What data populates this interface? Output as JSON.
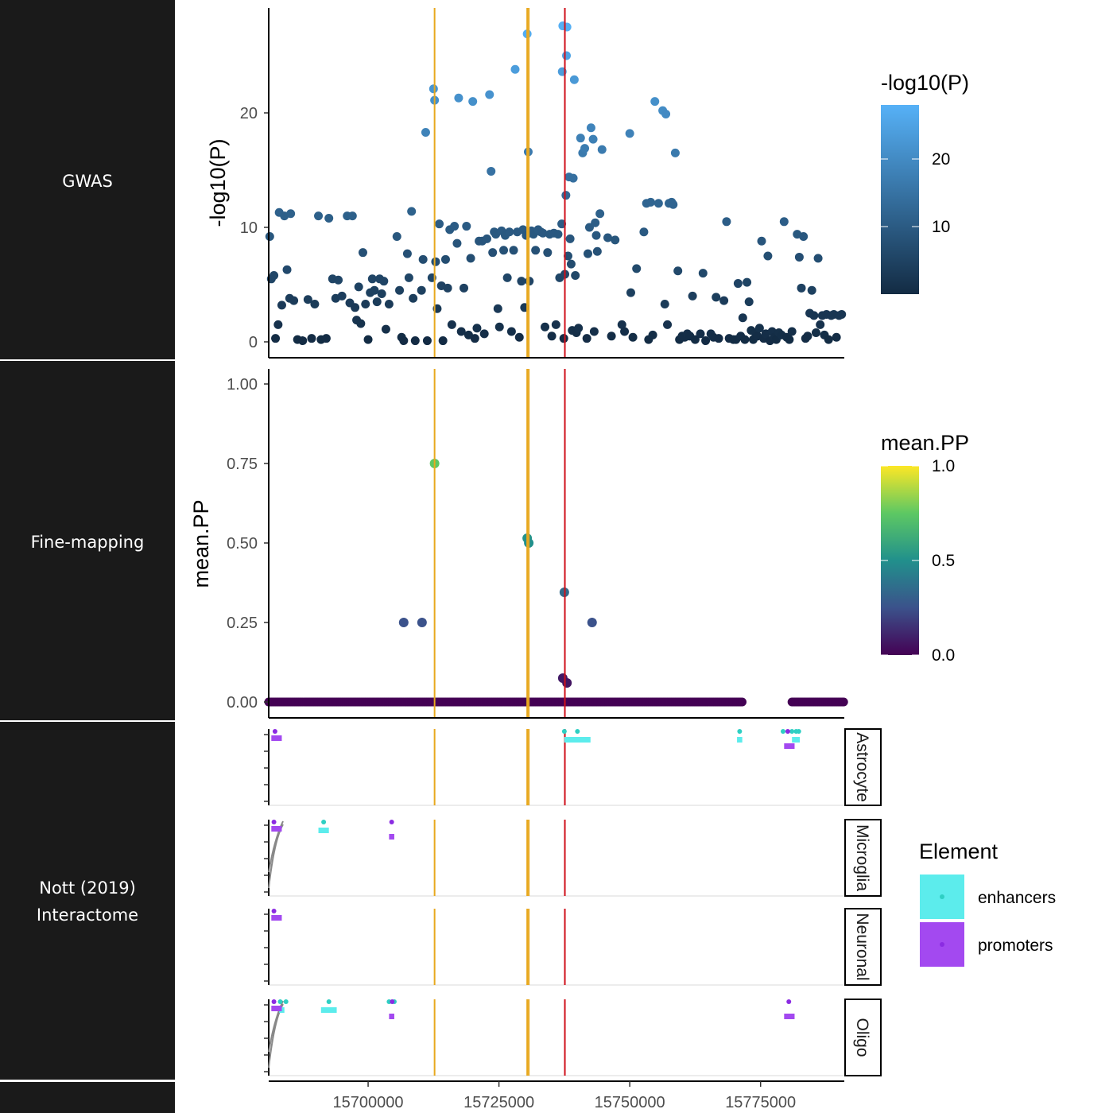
{
  "row_labels": {
    "gwas": "GWAS",
    "finemap": "Fine-mapping",
    "nott_line1": "Nott (2019)",
    "nott_line2": "Interactome"
  },
  "chart_data": [
    {
      "type": "scatter",
      "panel": "GWAS",
      "ylabel": "-log10(P)",
      "ylim": [
        0,
        29
      ],
      "yticks": [
        0,
        10,
        20
      ],
      "xlim": [
        15681000,
        15791000
      ],
      "color_scale": {
        "title": "-log10(P)",
        "low": "#132B43",
        "high": "#56B1F7",
        "ticks": [
          10,
          20
        ]
      },
      "highlight_lines": [
        {
          "x": 15712700,
          "color": "#E8A81E"
        },
        {
          "x": 15730400,
          "color": "#E8A81E"
        },
        {
          "x": 15730700,
          "color": "#E8A81E"
        },
        {
          "x": 15737600,
          "color": "#D0101A"
        }
      ],
      "points": [
        [
          15681200,
          9.2
        ],
        [
          15681500,
          5.5
        ],
        [
          15682000,
          5.8
        ],
        [
          15682300,
          0.3
        ],
        [
          15682800,
          1.5
        ],
        [
          15683000,
          11.3
        ],
        [
          15683500,
          3.2
        ],
        [
          15684000,
          11.0
        ],
        [
          15684500,
          6.3
        ],
        [
          15685000,
          3.8
        ],
        [
          15685200,
          11.2
        ],
        [
          15685800,
          3.6
        ],
        [
          15686500,
          0.2
        ],
        [
          15687500,
          0.1
        ],
        [
          15688500,
          3.7
        ],
        [
          15689200,
          0.3
        ],
        [
          15689800,
          3.3
        ],
        [
          15690500,
          11.0
        ],
        [
          15691000,
          0.2
        ],
        [
          15692000,
          0.3
        ],
        [
          15692500,
          10.8
        ],
        [
          15693200,
          5.5
        ],
        [
          15693800,
          3.8
        ],
        [
          15694300,
          5.4
        ],
        [
          15695000,
          4.0
        ],
        [
          15696000,
          11.0
        ],
        [
          15696500,
          3.4
        ],
        [
          15697000,
          11.0
        ],
        [
          15697500,
          3.0
        ],
        [
          15697800,
          1.9
        ],
        [
          15698200,
          4.8
        ],
        [
          15698600,
          1.6
        ],
        [
          15699000,
          7.8
        ],
        [
          15699500,
          3.3
        ],
        [
          15700000,
          0.2
        ],
        [
          15700400,
          4.3
        ],
        [
          15700800,
          5.5
        ],
        [
          15701200,
          4.5
        ],
        [
          15701700,
          3.5
        ],
        [
          15702200,
          5.5
        ],
        [
          15702600,
          4.2
        ],
        [
          15703000,
          5.3
        ],
        [
          15703400,
          1.1
        ],
        [
          15704000,
          3.3
        ],
        [
          15705500,
          9.2
        ],
        [
          15706000,
          4.5
        ],
        [
          15706400,
          0.4
        ],
        [
          15706800,
          0.1
        ],
        [
          15707500,
          7.7
        ],
        [
          15707800,
          5.6
        ],
        [
          15708300,
          11.4
        ],
        [
          15708600,
          3.8
        ],
        [
          15709000,
          0.1
        ],
        [
          15710200,
          4.5
        ],
        [
          15710500,
          7.2
        ],
        [
          15711000,
          18.3
        ],
        [
          15711300,
          0.1
        ],
        [
          15712200,
          5.6
        ],
        [
          15712500,
          22.1
        ],
        [
          15712700,
          21.1
        ],
        [
          15712900,
          7.0
        ],
        [
          15713200,
          2.9
        ],
        [
          15713600,
          10.3
        ],
        [
          15714000,
          4.9
        ],
        [
          15714300,
          0.1
        ],
        [
          15714800,
          7.2
        ],
        [
          15715200,
          4.7
        ],
        [
          15715600,
          9.8
        ],
        [
          15716000,
          1.5
        ],
        [
          15716500,
          10.1
        ],
        [
          15717000,
          8.6
        ],
        [
          15717300,
          21.3
        ],
        [
          15717800,
          0.9
        ],
        [
          15718300,
          4.7
        ],
        [
          15718800,
          10.1
        ],
        [
          15719200,
          0.6
        ],
        [
          15719600,
          7.3
        ],
        [
          15720000,
          21.0
        ],
        [
          15720400,
          0.3
        ],
        [
          15720800,
          1.2
        ],
        [
          15721200,
          8.8
        ],
        [
          15721800,
          8.8
        ],
        [
          15722200,
          0.7
        ],
        [
          15722700,
          9.0
        ],
        [
          15723200,
          21.6
        ],
        [
          15723500,
          14.9
        ],
        [
          15723800,
          7.8
        ],
        [
          15724100,
          9.6
        ],
        [
          15724400,
          9.4
        ],
        [
          15724800,
          2.9
        ],
        [
          15725100,
          1.3
        ],
        [
          15725500,
          9.7
        ],
        [
          15725900,
          8.0
        ],
        [
          15726200,
          9.3
        ],
        [
          15726600,
          5.6
        ],
        [
          15727000,
          9.6
        ],
        [
          15727400,
          0.9
        ],
        [
          15727800,
          8.0
        ],
        [
          15728100,
          23.8
        ],
        [
          15728500,
          9.6
        ],
        [
          15728900,
          0.4
        ],
        [
          15729300,
          5.3
        ],
        [
          15729600,
          9.8
        ],
        [
          15729900,
          3.0
        ],
        [
          15730200,
          9.3
        ],
        [
          15730400,
          26.9
        ],
        [
          15730600,
          16.6
        ],
        [
          15730800,
          5.3
        ],
        [
          15731200,
          9.7
        ],
        [
          15731600,
          9.4
        ],
        [
          15732000,
          8.0
        ],
        [
          15732500,
          9.8
        ],
        [
          15733000,
          9.6
        ],
        [
          15733400,
          9.5
        ],
        [
          15733800,
          1.3
        ],
        [
          15734300,
          7.8
        ],
        [
          15734700,
          9.4
        ],
        [
          15735100,
          0.5
        ],
        [
          15735500,
          9.5
        ],
        [
          15735900,
          1.5
        ],
        [
          15736300,
          9.4
        ],
        [
          15736600,
          5.6
        ],
        [
          15737000,
          10.3
        ],
        [
          15737100,
          23.6
        ],
        [
          15737200,
          27.6
        ],
        [
          15737400,
          0.3
        ],
        [
          15737600,
          5.9
        ],
        [
          15737800,
          12.8
        ],
        [
          15737900,
          25.0
        ],
        [
          15738000,
          27.5
        ],
        [
          15738200,
          7.5
        ],
        [
          15738400,
          14.4
        ],
        [
          15738600,
          9.0
        ],
        [
          15738800,
          6.8
        ],
        [
          15739000,
          1.0
        ],
        [
          15739200,
          14.3
        ],
        [
          15739400,
          22.9
        ],
        [
          15739600,
          5.8
        ],
        [
          15739800,
          0.8
        ],
        [
          15740200,
          1.2
        ],
        [
          15740600,
          17.8
        ],
        [
          15741000,
          16.5
        ],
        [
          15741400,
          16.9
        ],
        [
          15741800,
          0.3
        ],
        [
          15742000,
          7.7
        ],
        [
          15742300,
          10.0
        ],
        [
          15742600,
          18.7
        ],
        [
          15743000,
          17.7
        ],
        [
          15743200,
          0.9
        ],
        [
          15743400,
          10.4
        ],
        [
          15743600,
          9.3
        ],
        [
          15743800,
          7.9
        ],
        [
          15744300,
          11.2
        ],
        [
          15744700,
          16.8
        ],
        [
          15745800,
          9.1
        ],
        [
          15746500,
          0.5
        ],
        [
          15747200,
          8.9
        ],
        [
          15748500,
          1.5
        ],
        [
          15749000,
          0.9
        ],
        [
          15750000,
          18.2
        ],
        [
          15750200,
          4.3
        ],
        [
          15750600,
          0.4
        ],
        [
          15751300,
          6.4
        ],
        [
          15752700,
          9.6
        ],
        [
          15753200,
          12.1
        ],
        [
          15753600,
          0.2
        ],
        [
          15754000,
          12.2
        ],
        [
          15754400,
          0.6
        ],
        [
          15754800,
          21.0
        ],
        [
          15755500,
          12.1
        ],
        [
          15756300,
          20.2
        ],
        [
          15756700,
          3.3
        ],
        [
          15756900,
          19.9
        ],
        [
          15757200,
          1.5
        ],
        [
          15757500,
          12.1
        ],
        [
          15758000,
          12.2
        ],
        [
          15758300,
          12.0
        ],
        [
          15758700,
          16.5
        ],
        [
          15759200,
          6.2
        ],
        [
          15759500,
          0.2
        ],
        [
          15760000,
          0.5
        ],
        [
          15760500,
          0.4
        ],
        [
          15761000,
          0.7
        ],
        [
          15761500,
          0.5
        ],
        [
          15762000,
          4.0
        ],
        [
          15762500,
          0.2
        ],
        [
          15763500,
          0.7
        ],
        [
          15764000,
          6.0
        ],
        [
          15764500,
          0.1
        ],
        [
          15765500,
          0.7
        ],
        [
          15766000,
          0.4
        ],
        [
          15766500,
          3.9
        ],
        [
          15767000,
          0.3
        ],
        [
          15768000,
          3.6
        ],
        [
          15768500,
          10.5
        ],
        [
          15769000,
          0.3
        ],
        [
          15769800,
          0.2
        ],
        [
          15770300,
          0.2
        ],
        [
          15770700,
          5.1
        ],
        [
          15771200,
          0.5
        ],
        [
          15771600,
          2.1
        ],
        [
          15772000,
          0.2
        ],
        [
          15772400,
          5.2
        ],
        [
          15772800,
          3.5
        ],
        [
          15773200,
          1.0
        ],
        [
          15773600,
          0.2
        ],
        [
          15774000,
          0.8
        ],
        [
          15774400,
          0.5
        ],
        [
          15774800,
          1.2
        ],
        [
          15775200,
          8.8
        ],
        [
          15775600,
          0.3
        ],
        [
          15776000,
          0.7
        ],
        [
          15776400,
          7.5
        ],
        [
          15776800,
          0.1
        ],
        [
          15777200,
          0.9
        ],
        [
          15777600,
          0.4
        ],
        [
          15778000,
          0.2
        ],
        [
          15778500,
          0.8
        ],
        [
          15779000,
          0.6
        ],
        [
          15779500,
          10.5
        ],
        [
          15780000,
          0.4
        ],
        [
          15780500,
          0.2
        ],
        [
          15781000,
          0.9
        ],
        [
          15782000,
          9.4
        ],
        [
          15782400,
          7.4
        ],
        [
          15782800,
          4.7
        ],
        [
          15783200,
          9.2
        ],
        [
          15783600,
          0.3
        ],
        [
          15784000,
          0.5
        ],
        [
          15784400,
          2.5
        ],
        [
          15784800,
          4.5
        ],
        [
          15785200,
          2.3
        ],
        [
          15785600,
          0.8
        ],
        [
          15786000,
          7.3
        ],
        [
          15786400,
          1.5
        ],
        [
          15786800,
          2.3
        ],
        [
          15787200,
          0.6
        ],
        [
          15787600,
          2.4
        ],
        [
          15788000,
          0.2
        ],
        [
          15788500,
          2.3
        ],
        [
          15789000,
          2.4
        ],
        [
          15789500,
          0.4
        ],
        [
          15790000,
          2.3
        ],
        [
          15790500,
          2.4
        ]
      ]
    },
    {
      "type": "scatter",
      "panel": "Fine-mapping",
      "ylabel": "mean.PP",
      "ylim": [
        0,
        1.0
      ],
      "yticks": [
        "0.00",
        "0.25",
        "0.50",
        "0.75",
        "1.00"
      ],
      "xlim": [
        15681000,
        15791000
      ],
      "color_scale": {
        "title": "mean.PP",
        "ticks": [
          "0.0",
          "0.5",
          "1.0"
        ],
        "stops": [
          "#440154",
          "#3B528B",
          "#21908C",
          "#5DC863",
          "#FDE725"
        ]
      },
      "nonzero_points": [
        [
          15712700,
          0.75
        ],
        [
          15730400,
          0.515
        ],
        [
          15730700,
          0.5
        ],
        [
          15737500,
          0.345
        ],
        [
          15706800,
          0.25
        ],
        [
          15710300,
          0.25
        ],
        [
          15742800,
          0.25
        ],
        [
          15737200,
          0.075
        ],
        [
          15738000,
          0.06
        ]
      ],
      "zero_range": [
        [
          15681000,
          15771500
        ],
        [
          15781000,
          15791000
        ]
      ]
    },
    {
      "type": "scatter",
      "panel": "Nott (2019) Interactome",
      "xticks": [
        15700000,
        15725000,
        15750000,
        15775000
      ],
      "xtick_labels": [
        "15700000",
        "15725000",
        "15750000",
        "15775000"
      ],
      "legend": {
        "title": "Element",
        "items": [
          {
            "label": "enhancers",
            "color": "#5CECEC"
          },
          {
            "label": "promoters",
            "color": "#A349F0"
          }
        ]
      },
      "facets": [
        {
          "label": "Astrocyte",
          "enhancers": [
            [
              15737500,
              15742500
            ],
            [
              15770500,
              15771500
            ],
            [
              15781000,
              15782500
            ]
          ],
          "promoters": [
            [
              15681500,
              15683500
            ],
            [
              15779500,
              15781500
            ]
          ],
          "enhancer_dots": [
            15737500,
            15740000,
            15771000,
            15779300,
            15781000,
            15781800,
            15782300
          ],
          "promoter_dots": [
            15682200,
            15780200
          ],
          "arcs": 0
        },
        {
          "label": "Microglia",
          "enhancers": [
            [
              15690500,
              15692500
            ]
          ],
          "promoters": [
            [
              15681500,
              15683500
            ],
            [
              15704000,
              15705000
            ]
          ],
          "enhancer_dots": [
            15691500
          ],
          "promoter_dots": [
            15682000,
            15704500
          ],
          "arcs": 2
        },
        {
          "label": "Neuronal",
          "enhancers": [],
          "promoters": [
            [
              15681500,
              15683500
            ]
          ],
          "enhancer_dots": [],
          "promoter_dots": [
            15682000
          ],
          "arcs": 0
        },
        {
          "label": "Oligo",
          "enhancers": [
            [
              15691000,
              15694000
            ],
            [
              15683000,
              15684000
            ]
          ],
          "promoters": [
            [
              15681500,
              15683500
            ],
            [
              15704000,
              15705000
            ],
            [
              15779500,
              15781500
            ]
          ],
          "enhancer_dots": [
            15683200,
            15684300,
            15692500,
            15704000,
            15705000
          ],
          "promoter_dots": [
            15682000,
            15704600,
            15780400
          ],
          "arcs": 2
        }
      ]
    }
  ]
}
